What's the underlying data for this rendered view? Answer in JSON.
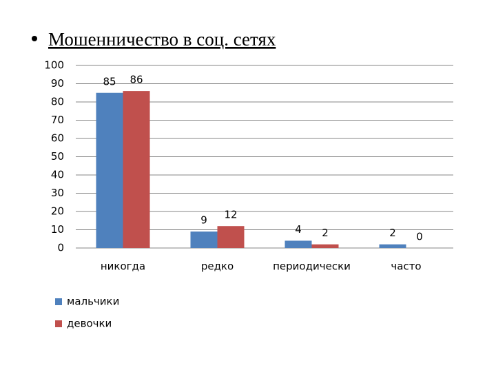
{
  "chart_data": {
    "type": "bar",
    "title": "Мошенничество в соц. сетях",
    "categories": [
      "никогда",
      "редко",
      "периодически",
      "часто"
    ],
    "series": [
      {
        "name": "мальчики",
        "color": "#4f81bd",
        "values": [
          85,
          9,
          4,
          2
        ]
      },
      {
        "name": "девочки",
        "color": "#c0504d",
        "values": [
          86,
          12,
          2,
          0
        ]
      }
    ],
    "ylim": [
      0,
      100
    ],
    "yticks": [
      0,
      10,
      20,
      30,
      40,
      50,
      60,
      70,
      80,
      90,
      100
    ],
    "grid": true,
    "legend": "bottom-left"
  }
}
